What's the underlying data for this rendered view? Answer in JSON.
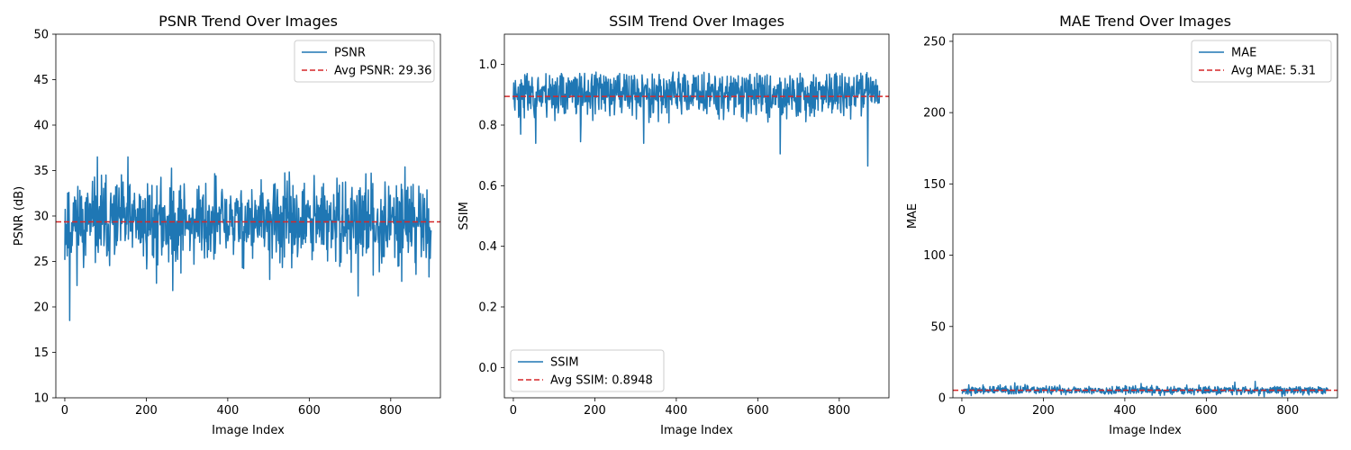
{
  "chart_data": [
    {
      "type": "line",
      "title": "PSNR Trend Over Images",
      "xlabel": "Image Index",
      "ylabel": "PSNR (dB)",
      "xlim": [
        -22,
        922
      ],
      "ylim": [
        10,
        50
      ],
      "xticks": [
        0,
        200,
        400,
        600,
        800
      ],
      "yticks": [
        10,
        15,
        20,
        25,
        30,
        35,
        40,
        45,
        50
      ],
      "ytick_labels": [
        "10",
        "15",
        "20",
        "25",
        "30",
        "35",
        "40",
        "45",
        "50"
      ],
      "legend_position": "upper-right",
      "grid": false,
      "series": [
        {
          "name": "PSNR",
          "color": "#1f77b4",
          "n": 900,
          "mean": 29.3,
          "spread": 2.3,
          "spikes": [
            [
              12,
              18.5
            ],
            [
              80,
              36.5
            ],
            [
              155,
              36.5
            ],
            [
              225,
              22.6
            ],
            [
              265,
              21.8
            ],
            [
              720,
              21.2
            ],
            [
              835,
              35.4
            ]
          ],
          "seed": 11
        }
      ],
      "reference_line": {
        "name": "Avg PSNR: 29.36",
        "value": 29.36,
        "color": "#d62728",
        "style": "dashed"
      }
    },
    {
      "type": "line",
      "title": "SSIM Trend Over Images",
      "xlabel": "Image Index",
      "ylabel": "SSIM",
      "xlim": [
        -22,
        922
      ],
      "ylim": [
        -0.1,
        1.1
      ],
      "xticks": [
        0,
        200,
        400,
        600,
        800
      ],
      "yticks": [
        0.0,
        0.2,
        0.4,
        0.6,
        0.8,
        1.0
      ],
      "ytick_labels": [
        "0.0",
        "0.2",
        "0.4",
        "0.6",
        "0.8",
        "1.0"
      ],
      "legend_position": "lower-left",
      "grid": false,
      "series": [
        {
          "name": "SSIM",
          "color": "#1f77b4",
          "n": 900,
          "mean": 0.905,
          "spread": 0.04,
          "max": 0.975,
          "spikes": [
            [
              655,
              0.705
            ],
            [
              870,
              0.665
            ],
            [
              18,
              0.77
            ],
            [
              55,
              0.74
            ],
            [
              165,
              0.745
            ],
            [
              320,
              0.74
            ]
          ],
          "seed": 23
        }
      ],
      "reference_line": {
        "name": "Avg SSIM: 0.8948",
        "value": 0.8948,
        "color": "#d62728",
        "style": "dashed"
      }
    },
    {
      "type": "line",
      "title": "MAE Trend Over Images",
      "xlabel": "Image Index",
      "ylabel": "MAE",
      "xlim": [
        -22,
        922
      ],
      "ylim": [
        0,
        255
      ],
      "xticks": [
        0,
        200,
        400,
        600,
        800
      ],
      "yticks": [
        0,
        50,
        100,
        150,
        200,
        250
      ],
      "ytick_labels": [
        "0",
        "50",
        "100",
        "150",
        "200",
        "250"
      ],
      "legend_position": "upper-right",
      "grid": false,
      "series": [
        {
          "name": "MAE",
          "color": "#1f77b4",
          "n": 900,
          "mean": 5.3,
          "spread": 1.5,
          "spikes": [
            [
              130,
              10.5
            ],
            [
              670,
              11.0
            ],
            [
              720,
              11.5
            ],
            [
              440,
              10.0
            ]
          ],
          "seed": 37
        }
      ],
      "reference_line": {
        "name": "Avg MAE: 5.31",
        "value": 5.31,
        "color": "#d62728",
        "style": "dashed"
      }
    }
  ]
}
